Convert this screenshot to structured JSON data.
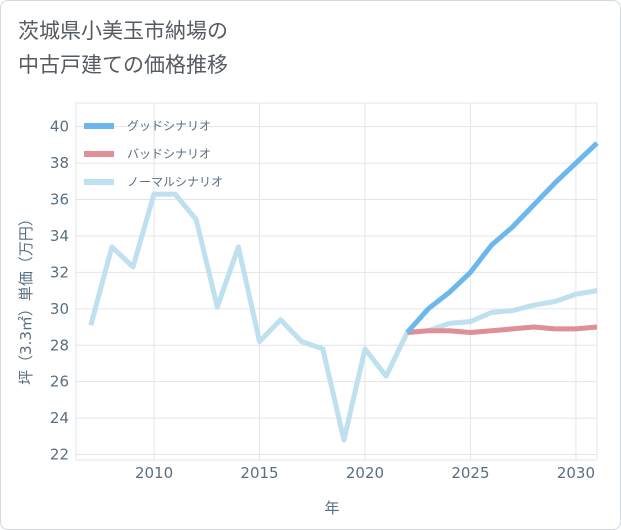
{
  "chart_data": {
    "type": "line",
    "title_lines": [
      "茨城県小美玉市納場の",
      "中古戸建ての価格推移"
    ],
    "xlabel": "年",
    "ylabel": "坪（3.3㎡）単価（万円）",
    "xlim": [
      2006.3,
      2031
    ],
    "ylim": [
      21.7,
      41.3
    ],
    "x_ticks": [
      2010,
      2015,
      2020,
      2025,
      2030
    ],
    "y_ticks": [
      22,
      24,
      26,
      28,
      30,
      32,
      34,
      36,
      38,
      40
    ],
    "grid": true,
    "legend_position": "top-left",
    "series": [
      {
        "name": "グッドシナリオ",
        "color": "#6cb7ec",
        "x": [
          2022,
          2023,
          2024,
          2025,
          2026,
          2027,
          2028,
          2029,
          2030,
          2031
        ],
        "values": [
          28.7,
          30.0,
          30.9,
          32.0,
          33.5,
          34.5,
          35.7,
          36.9,
          38.0,
          39.1
        ]
      },
      {
        "name": "バッドシナリオ",
        "color": "#df8f96",
        "x": [
          2022,
          2023,
          2024,
          2025,
          2026,
          2027,
          2028,
          2029,
          2030,
          2031
        ],
        "values": [
          28.7,
          28.8,
          28.8,
          28.7,
          28.8,
          28.9,
          29.0,
          28.9,
          28.9,
          29.0
        ]
      },
      {
        "name": "ノーマルシナリオ",
        "color": "#bfe0ee",
        "x": [
          2007,
          2008,
          2009,
          2010,
          2011,
          2012,
          2013,
          2014,
          2015,
          2016,
          2017,
          2018,
          2019,
          2020,
          2021,
          2022,
          2023,
          2024,
          2025,
          2026,
          2027,
          2028,
          2029,
          2030,
          2031
        ],
        "values": [
          29.1,
          33.4,
          32.3,
          36.3,
          36.3,
          34.9,
          30.1,
          33.4,
          28.2,
          29.4,
          28.2,
          27.8,
          22.8,
          27.8,
          26.3,
          28.7,
          28.8,
          29.2,
          29.3,
          29.8,
          29.9,
          30.2,
          30.4,
          30.8,
          31.0
        ]
      }
    ]
  }
}
